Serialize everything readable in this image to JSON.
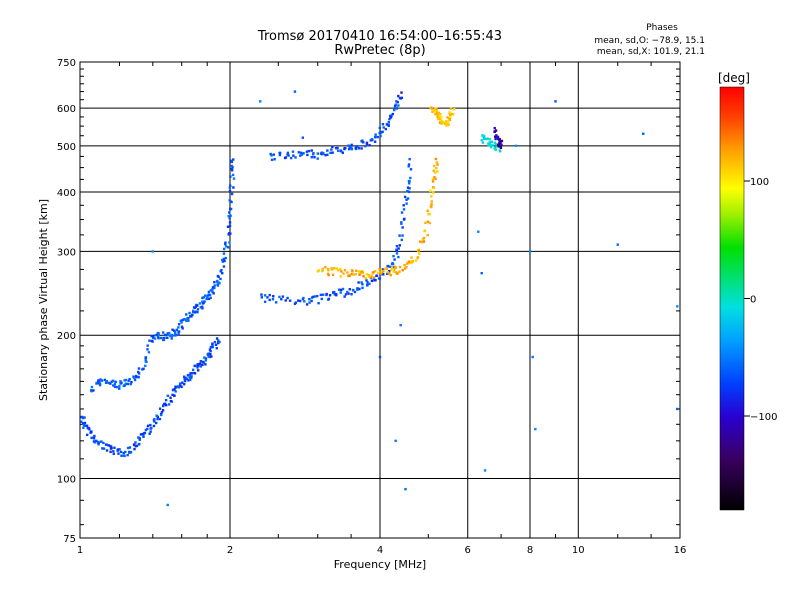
{
  "title": {
    "line1": "Tromsø 20170410 16:54:00–16:55:43",
    "line2": "RwPretec (8p)"
  },
  "phases_box": {
    "heading": "Phases",
    "line_o": "mean, sd,O: −78.9, 15.1",
    "line_x": "mean, sd,X: 101.9, 21.1"
  },
  "colorbar": {
    "label": "[deg]",
    "ticks": [
      {
        "value": 100,
        "label": "100"
      },
      {
        "value": 0,
        "label": "0"
      },
      {
        "value": -100,
        "label": "−100"
      }
    ],
    "range": [
      -180,
      180
    ]
  },
  "chart_data": {
    "type": "scatter",
    "xlabel": "Frequency [MHz]",
    "ylabel": "Stationary phase Virtual Height [km]",
    "x_scale": "log",
    "y_scale": "log",
    "xlim": [
      1,
      16
    ],
    "ylim": [
      75,
      750
    ],
    "x_ticks": [
      {
        "value": 1,
        "label": "1"
      },
      {
        "value": 2,
        "label": "2"
      },
      {
        "value": 4,
        "label": "4"
      },
      {
        "value": 6,
        "label": "6"
      },
      {
        "value": 8,
        "label": "8"
      },
      {
        "value": 10,
        "label": "10"
      },
      {
        "value": 16,
        "label": "16"
      }
    ],
    "y_ticks": [
      {
        "value": 75,
        "label": "75"
      },
      {
        "value": 100,
        "label": "100"
      },
      {
        "value": 200,
        "label": "200"
      },
      {
        "value": 300,
        "label": "300"
      },
      {
        "value": 400,
        "label": "400"
      },
      {
        "value": 500,
        "label": "500"
      },
      {
        "value": 600,
        "label": "600"
      },
      {
        "value": 750,
        "label": "750"
      }
    ],
    "grid": true,
    "color_variable": "phase [deg]",
    "traces": [
      {
        "id": "E-low",
        "phase": -95,
        "points": [
          [
            1.01,
            135
          ],
          [
            1.03,
            128
          ],
          [
            1.06,
            122
          ],
          [
            1.1,
            118
          ],
          [
            1.15,
            115
          ],
          [
            1.2,
            113
          ],
          [
            1.25,
            114
          ],
          [
            1.3,
            118
          ],
          [
            1.35,
            124
          ],
          [
            1.4,
            130
          ],
          [
            1.45,
            137
          ],
          [
            1.5,
            145
          ],
          [
            1.55,
            152
          ],
          [
            1.6,
            158
          ],
          [
            1.65,
            163
          ],
          [
            1.7,
            168
          ],
          [
            1.75,
            174
          ],
          [
            1.8,
            180
          ],
          [
            1.85,
            188
          ],
          [
            1.9,
            196
          ]
        ]
      },
      {
        "id": "E-high",
        "phase": -90,
        "points": [
          [
            1.05,
            155
          ],
          [
            1.1,
            160
          ],
          [
            1.15,
            158
          ],
          [
            1.2,
            157
          ],
          [
            1.25,
            160
          ],
          [
            1.3,
            162
          ],
          [
            1.35,
            175
          ],
          [
            1.4,
            200
          ],
          [
            1.45,
            200
          ],
          [
            1.5,
            198
          ],
          [
            1.55,
            202
          ],
          [
            1.6,
            210
          ],
          [
            1.65,
            220
          ],
          [
            1.7,
            225
          ],
          [
            1.75,
            232
          ],
          [
            1.8,
            240
          ],
          [
            1.85,
            250
          ],
          [
            1.9,
            262
          ],
          [
            1.95,
            285
          ],
          [
            1.98,
            320
          ],
          [
            2.0,
            360
          ],
          [
            2.02,
            420
          ],
          [
            2.03,
            470
          ]
        ]
      },
      {
        "id": "F1-O",
        "phase": -95,
        "points": [
          [
            2.3,
            240
          ],
          [
            2.5,
            238
          ],
          [
            2.8,
            236
          ],
          [
            3.0,
            238
          ],
          [
            3.2,
            242
          ],
          [
            3.4,
            246
          ],
          [
            3.6,
            252
          ],
          [
            3.8,
            258
          ],
          [
            4.0,
            266
          ],
          [
            4.2,
            278
          ],
          [
            4.35,
            300
          ],
          [
            4.45,
            350
          ],
          [
            4.55,
            400
          ],
          [
            4.62,
            460
          ]
        ]
      },
      {
        "id": "F1-X",
        "phase": 120,
        "points": [
          [
            3.0,
            275
          ],
          [
            3.2,
            272
          ],
          [
            3.4,
            270
          ],
          [
            3.6,
            268
          ],
          [
            3.8,
            268
          ],
          [
            4.0,
            270
          ],
          [
            4.2,
            272
          ],
          [
            4.4,
            275
          ],
          [
            4.6,
            285
          ],
          [
            4.8,
            300
          ],
          [
            4.95,
            330
          ],
          [
            5.05,
            380
          ],
          [
            5.15,
            430
          ],
          [
            5.2,
            470
          ]
        ]
      },
      {
        "id": "F2-O",
        "phase": -95,
        "points": [
          [
            2.4,
            475
          ],
          [
            2.6,
            478
          ],
          [
            2.8,
            480
          ],
          [
            3.0,
            482
          ],
          [
            3.2,
            488
          ],
          [
            3.4,
            494
          ],
          [
            3.6,
            500
          ],
          [
            3.8,
            510
          ],
          [
            4.0,
            530
          ],
          [
            4.15,
            560
          ],
          [
            4.3,
            600
          ],
          [
            4.4,
            640
          ]
        ]
      },
      {
        "id": "F2-X",
        "phase": 115,
        "points": [
          [
            5.1,
            600
          ],
          [
            5.2,
            585
          ],
          [
            5.3,
            570
          ],
          [
            5.4,
            560
          ],
          [
            5.5,
            565
          ],
          [
            5.6,
            590
          ]
        ]
      },
      {
        "id": "F2-X-tail",
        "phase": -20,
        "points": [
          [
            6.4,
            520
          ],
          [
            6.6,
            510
          ],
          [
            6.8,
            500
          ],
          [
            7.0,
            495
          ]
        ]
      },
      {
        "id": "F2-purple",
        "phase": -130,
        "points": [
          [
            6.8,
            540
          ],
          [
            6.9,
            520
          ],
          [
            7.0,
            500
          ],
          [
            6.95,
            510
          ]
        ]
      },
      {
        "id": "scatter",
        "phase": -80,
        "points": [
          [
            1.4,
            300
          ],
          [
            1.5,
            88
          ],
          [
            2.3,
            620
          ],
          [
            2.7,
            650
          ],
          [
            2.8,
            520
          ],
          [
            3.0,
            470
          ],
          [
            6.3,
            330
          ],
          [
            6.4,
            270
          ],
          [
            7.5,
            500
          ],
          [
            8.0,
            300
          ],
          [
            8.1,
            180
          ],
          [
            8.2,
            127
          ],
          [
            9.0,
            620
          ],
          [
            12.0,
            310
          ],
          [
            13.5,
            530
          ],
          [
            15.8,
            230
          ],
          [
            15.8,
            140
          ],
          [
            6.5,
            104
          ],
          [
            4.3,
            120
          ],
          [
            4.5,
            95
          ],
          [
            4.0,
            180
          ],
          [
            4.4,
            210
          ]
        ]
      }
    ]
  }
}
